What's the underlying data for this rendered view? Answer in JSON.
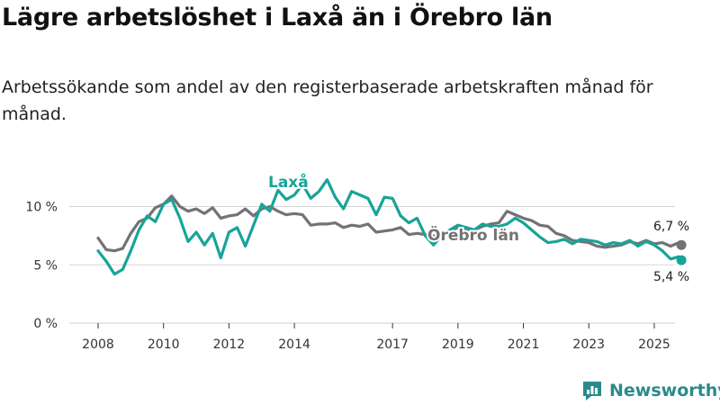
{
  "title": "Lägre arbetslöshet i Laxå än i Örebro län",
  "subtitle": "Arbetssökande som andel av den registerbaserade arbetskraften månad för månad.",
  "brand": "Newsworthy",
  "colors": {
    "laxa": "#17a499",
    "orebro": "#747274",
    "grid": "#d6d6d6",
    "brand": "#2a8a8a"
  },
  "chart_data": {
    "type": "line",
    "title": "Lägre arbetslöshet i Laxå än i Örebro län",
    "xlabel": "",
    "ylabel": "",
    "xlim": [
      2008,
      2026.25
    ],
    "ylim": [
      0,
      12.5
    ],
    "x_ticks": [
      {
        "value": 2008,
        "label": "2008"
      },
      {
        "value": 2010,
        "label": "2010"
      },
      {
        "value": 2012,
        "label": "2012"
      },
      {
        "value": 2014,
        "label": "2014"
      },
      {
        "value": 2017,
        "label": "2017"
      },
      {
        "value": 2019,
        "label": "2019"
      },
      {
        "value": 2021,
        "label": "2021"
      },
      {
        "value": 2023,
        "label": "2023"
      },
      {
        "value": 2025,
        "label": "2025"
      }
    ],
    "y_ticks": [
      {
        "value": 0,
        "label": "0 %"
      },
      {
        "value": 5,
        "label": "5 %"
      },
      {
        "value": 10,
        "label": "10 %"
      }
    ],
    "series": [
      {
        "name": "Laxå",
        "label": "Laxå",
        "end_label": "5,4 %",
        "points": [
          [
            2008.0,
            6.2
          ],
          [
            2008.25,
            5.3
          ],
          [
            2008.5,
            4.2
          ],
          [
            2008.75,
            4.6
          ],
          [
            2009.0,
            6.2
          ],
          [
            2009.25,
            8.0
          ],
          [
            2009.5,
            9.2
          ],
          [
            2009.75,
            8.7
          ],
          [
            2010.0,
            10.2
          ],
          [
            2010.25,
            10.6
          ],
          [
            2010.5,
            9.0
          ],
          [
            2010.75,
            7.0
          ],
          [
            2011.0,
            7.8
          ],
          [
            2011.25,
            6.7
          ],
          [
            2011.5,
            7.7
          ],
          [
            2011.75,
            5.6
          ],
          [
            2012.0,
            7.8
          ],
          [
            2012.25,
            8.2
          ],
          [
            2012.5,
            6.6
          ],
          [
            2012.75,
            8.4
          ],
          [
            2013.0,
            10.2
          ],
          [
            2013.25,
            9.6
          ],
          [
            2013.5,
            11.4
          ],
          [
            2013.75,
            10.6
          ],
          [
            2014.0,
            11.0
          ],
          [
            2014.25,
            11.9
          ],
          [
            2014.5,
            10.7
          ],
          [
            2014.75,
            11.3
          ],
          [
            2015.0,
            12.3
          ],
          [
            2015.25,
            10.8
          ],
          [
            2015.5,
            9.8
          ],
          [
            2015.75,
            11.3
          ],
          [
            2016.0,
            11.0
          ],
          [
            2016.25,
            10.7
          ],
          [
            2016.5,
            9.3
          ],
          [
            2016.75,
            10.8
          ],
          [
            2017.0,
            10.7
          ],
          [
            2017.25,
            9.2
          ],
          [
            2017.5,
            8.6
          ],
          [
            2017.75,
            9.0
          ],
          [
            2018.0,
            7.5
          ],
          [
            2018.25,
            6.7
          ],
          [
            2018.5,
            7.5
          ],
          [
            2018.75,
            8.0
          ],
          [
            2019.0,
            8.4
          ],
          [
            2019.25,
            8.2
          ],
          [
            2019.5,
            8.0
          ],
          [
            2019.75,
            8.5
          ],
          [
            2020.0,
            8.3
          ],
          [
            2020.25,
            8.3
          ],
          [
            2020.5,
            8.5
          ],
          [
            2020.75,
            9.0
          ],
          [
            2021.0,
            8.6
          ],
          [
            2021.25,
            8.0
          ],
          [
            2021.5,
            7.4
          ],
          [
            2021.75,
            6.9
          ],
          [
            2022.0,
            7.0
          ],
          [
            2022.25,
            7.2
          ],
          [
            2022.5,
            6.8
          ],
          [
            2022.75,
            7.2
          ],
          [
            2023.0,
            7.1
          ],
          [
            2023.25,
            7.0
          ],
          [
            2023.5,
            6.7
          ],
          [
            2023.75,
            6.9
          ],
          [
            2024.0,
            6.8
          ],
          [
            2024.25,
            7.1
          ],
          [
            2024.5,
            6.6
          ],
          [
            2024.75,
            7.0
          ],
          [
            2025.0,
            6.7
          ],
          [
            2025.25,
            6.2
          ],
          [
            2025.5,
            5.5
          ],
          [
            2025.75,
            5.7
          ],
          [
            2025.83,
            5.4
          ]
        ]
      },
      {
        "name": "Örebro län",
        "label": "Örebro län",
        "end_label": "6,7 %",
        "points": [
          [
            2008.0,
            7.3
          ],
          [
            2008.25,
            6.3
          ],
          [
            2008.5,
            6.2
          ],
          [
            2008.75,
            6.4
          ],
          [
            2009.0,
            7.7
          ],
          [
            2009.25,
            8.7
          ],
          [
            2009.5,
            9.0
          ],
          [
            2009.75,
            9.9
          ],
          [
            2010.0,
            10.2
          ],
          [
            2010.25,
            10.9
          ],
          [
            2010.5,
            10.0
          ],
          [
            2010.75,
            9.6
          ],
          [
            2011.0,
            9.8
          ],
          [
            2011.25,
            9.4
          ],
          [
            2011.5,
            9.9
          ],
          [
            2011.75,
            9.0
          ],
          [
            2012.0,
            9.2
          ],
          [
            2012.25,
            9.3
          ],
          [
            2012.5,
            9.8
          ],
          [
            2012.75,
            9.2
          ],
          [
            2013.0,
            9.8
          ],
          [
            2013.25,
            10.0
          ],
          [
            2013.5,
            9.6
          ],
          [
            2013.75,
            9.3
          ],
          [
            2014.0,
            9.4
          ],
          [
            2014.25,
            9.3
          ],
          [
            2014.5,
            8.4
          ],
          [
            2014.75,
            8.5
          ],
          [
            2015.0,
            8.5
          ],
          [
            2015.25,
            8.6
          ],
          [
            2015.5,
            8.2
          ],
          [
            2015.75,
            8.4
          ],
          [
            2016.0,
            8.3
          ],
          [
            2016.25,
            8.5
          ],
          [
            2016.5,
            7.8
          ],
          [
            2016.75,
            7.9
          ],
          [
            2017.0,
            8.0
          ],
          [
            2017.25,
            8.2
          ],
          [
            2017.5,
            7.6
          ],
          [
            2017.75,
            7.7
          ],
          [
            2018.0,
            7.6
          ],
          [
            2018.25,
            7.5
          ],
          [
            2018.5,
            7.3
          ],
          [
            2018.75,
            7.9
          ],
          [
            2019.0,
            8.2
          ],
          [
            2019.25,
            8.0
          ],
          [
            2019.5,
            8.0
          ],
          [
            2019.75,
            8.3
          ],
          [
            2020.0,
            8.5
          ],
          [
            2020.25,
            8.6
          ],
          [
            2020.5,
            9.6
          ],
          [
            2020.75,
            9.3
          ],
          [
            2021.0,
            9.0
          ],
          [
            2021.25,
            8.8
          ],
          [
            2021.5,
            8.4
          ],
          [
            2021.75,
            8.3
          ],
          [
            2022.0,
            7.7
          ],
          [
            2022.25,
            7.5
          ],
          [
            2022.5,
            7.1
          ],
          [
            2022.75,
            7.0
          ],
          [
            2023.0,
            6.9
          ],
          [
            2023.25,
            6.6
          ],
          [
            2023.5,
            6.5
          ],
          [
            2023.75,
            6.6
          ],
          [
            2024.0,
            6.7
          ],
          [
            2024.25,
            7.0
          ],
          [
            2024.5,
            6.8
          ],
          [
            2024.75,
            7.1
          ],
          [
            2025.0,
            6.8
          ],
          [
            2025.25,
            6.9
          ],
          [
            2025.5,
            6.6
          ],
          [
            2025.75,
            6.9
          ],
          [
            2025.83,
            6.7
          ]
        ]
      }
    ]
  }
}
